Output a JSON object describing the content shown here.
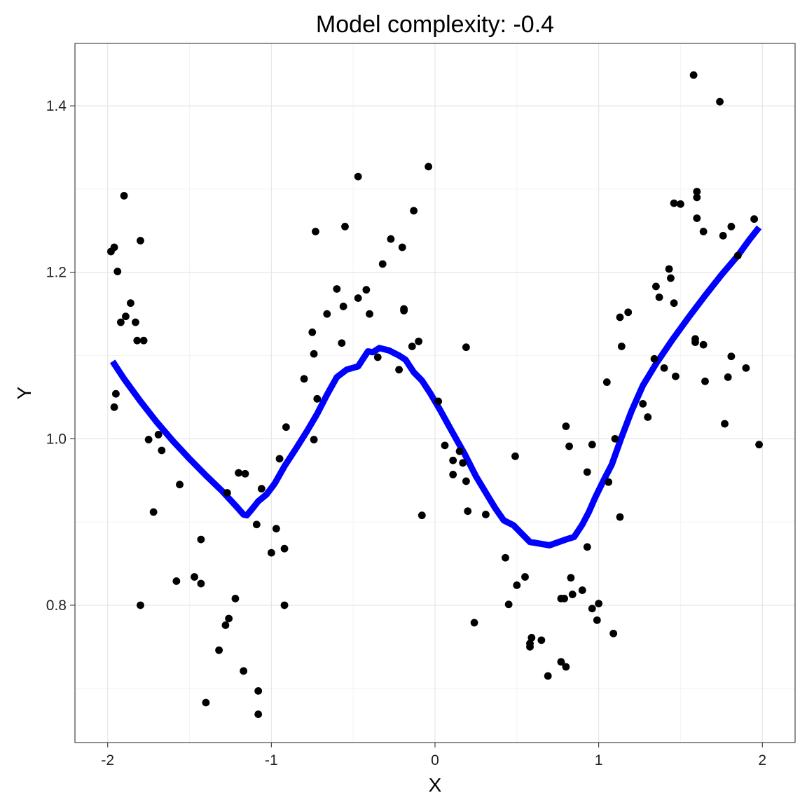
{
  "chart_data": {
    "type": "scatter",
    "title": "Model complexity: -0.4",
    "xlabel": "X",
    "ylabel": "Y",
    "xlim": [
      -2.2,
      2.2
    ],
    "ylim": [
      0.635,
      1.475
    ],
    "x_ticks": [
      -2,
      -1,
      0,
      1,
      2
    ],
    "x_tick_labels": [
      "-2",
      "-1",
      "0",
      "1",
      "2"
    ],
    "y_ticks": [
      0.8,
      1.0,
      1.2,
      1.4
    ],
    "y_tick_labels": [
      "0.8",
      "1.0",
      "1.2",
      "1.4"
    ],
    "grid": true,
    "point_color": "#000000",
    "line_color": "#0000ff",
    "points": [
      [
        -1.98,
        1.225
      ],
      [
        -1.96,
        1.23
      ],
      [
        -1.94,
        1.201
      ],
      [
        -1.95,
        1.054
      ],
      [
        -1.96,
        1.038
      ],
      [
        -1.92,
        1.14
      ],
      [
        -1.89,
        1.147
      ],
      [
        -1.9,
        1.292
      ],
      [
        -1.86,
        1.163
      ],
      [
        -1.83,
        1.14
      ],
      [
        -1.82,
        1.118
      ],
      [
        -1.8,
        1.238
      ],
      [
        -1.78,
        1.118
      ],
      [
        -1.8,
        0.8
      ],
      [
        -1.75,
        0.999
      ],
      [
        -1.72,
        0.912
      ],
      [
        -1.69,
        1.005
      ],
      [
        -1.67,
        0.986
      ],
      [
        -1.56,
        0.945
      ],
      [
        -1.58,
        0.829
      ],
      [
        -1.47,
        0.834
      ],
      [
        -1.43,
        0.879
      ],
      [
        -1.43,
        0.826
      ],
      [
        -1.4,
        0.683
      ],
      [
        -1.32,
        0.746
      ],
      [
        -1.28,
        0.776
      ],
      [
        -1.26,
        0.784
      ],
      [
        -1.27,
        0.935
      ],
      [
        -1.22,
        0.808
      ],
      [
        -1.2,
        0.959
      ],
      [
        -1.16,
        0.958
      ],
      [
        -1.17,
        0.721
      ],
      [
        -1.09,
        0.897
      ],
      [
        -1.08,
        0.697
      ],
      [
        -1.08,
        0.669
      ],
      [
        -1.06,
        0.94
      ],
      [
        -1.0,
        0.863
      ],
      [
        -0.97,
        0.892
      ],
      [
        -0.95,
        0.976
      ],
      [
        -0.92,
        0.868
      ],
      [
        -0.92,
        0.8
      ],
      [
        -0.91,
        1.014
      ],
      [
        -0.8,
        1.072
      ],
      [
        -0.75,
        1.128
      ],
      [
        -0.74,
        1.102
      ],
      [
        -0.74,
        0.999
      ],
      [
        -0.73,
        1.249
      ],
      [
        -0.72,
        1.048
      ],
      [
        -0.66,
        1.15
      ],
      [
        -0.6,
        1.18
      ],
      [
        -0.57,
        1.115
      ],
      [
        -0.56,
        1.159
      ],
      [
        -0.55,
        1.255
      ],
      [
        -0.47,
        1.169
      ],
      [
        -0.47,
        1.315
      ],
      [
        -0.42,
        1.179
      ],
      [
        -0.4,
        1.15
      ],
      [
        -0.35,
        1.098
      ],
      [
        -0.32,
        1.21
      ],
      [
        -0.27,
        1.24
      ],
      [
        -0.22,
        1.083
      ],
      [
        -0.2,
        1.23
      ],
      [
        -0.19,
        1.156
      ],
      [
        -0.19,
        1.154
      ],
      [
        -0.14,
        1.111
      ],
      [
        -0.13,
        1.274
      ],
      [
        -0.1,
        1.117
      ],
      [
        -0.08,
        0.908
      ],
      [
        -0.04,
        1.327
      ],
      [
        0.02,
        1.045
      ],
      [
        0.06,
        0.992
      ],
      [
        0.11,
        0.974
      ],
      [
        0.11,
        0.957
      ],
      [
        0.15,
        0.985
      ],
      [
        0.17,
        0.971
      ],
      [
        0.19,
        0.949
      ],
      [
        0.19,
        1.11
      ],
      [
        0.2,
        0.913
      ],
      [
        0.24,
        0.779
      ],
      [
        0.31,
        0.909
      ],
      [
        0.43,
        0.857
      ],
      [
        0.45,
        0.801
      ],
      [
        0.49,
        0.979
      ],
      [
        0.5,
        0.824
      ],
      [
        0.55,
        0.834
      ],
      [
        0.58,
        0.75
      ],
      [
        0.58,
        0.754
      ],
      [
        0.59,
        0.761
      ],
      [
        0.65,
        0.758
      ],
      [
        0.69,
        0.715
      ],
      [
        0.77,
        0.732
      ],
      [
        0.77,
        0.808
      ],
      [
        0.79,
        0.808
      ],
      [
        0.8,
        0.726
      ],
      [
        0.8,
        1.015
      ],
      [
        0.82,
        0.991
      ],
      [
        0.83,
        0.833
      ],
      [
        0.84,
        0.813
      ],
      [
        0.9,
        0.818
      ],
      [
        0.93,
        0.87
      ],
      [
        0.93,
        0.96
      ],
      [
        0.96,
        0.993
      ],
      [
        0.96,
        0.796
      ],
      [
        0.99,
        0.782
      ],
      [
        1.0,
        0.802
      ],
      [
        1.05,
        1.068
      ],
      [
        1.06,
        0.948
      ],
      [
        1.09,
        0.766
      ],
      [
        1.1,
        1.0
      ],
      [
        1.13,
        0.906
      ],
      [
        1.13,
        1.146
      ],
      [
        1.14,
        1.111
      ],
      [
        1.18,
        1.152
      ],
      [
        1.27,
        1.042
      ],
      [
        1.3,
        1.026
      ],
      [
        1.34,
        1.096
      ],
      [
        1.35,
        1.183
      ],
      [
        1.37,
        1.17
      ],
      [
        1.4,
        1.085
      ],
      [
        1.43,
        1.204
      ],
      [
        1.44,
        1.193
      ],
      [
        1.46,
        1.283
      ],
      [
        1.46,
        1.163
      ],
      [
        1.47,
        1.075
      ],
      [
        1.5,
        1.282
      ],
      [
        1.58,
        1.437
      ],
      [
        1.59,
        1.12
      ],
      [
        1.59,
        1.116
      ],
      [
        1.6,
        1.29
      ],
      [
        1.6,
        1.297
      ],
      [
        1.6,
        1.265
      ],
      [
        1.64,
        1.113
      ],
      [
        1.64,
        1.249
      ],
      [
        1.65,
        1.069
      ],
      [
        1.74,
        1.405
      ],
      [
        1.76,
        1.244
      ],
      [
        1.77,
        1.018
      ],
      [
        1.79,
        1.074
      ],
      [
        1.81,
        1.255
      ],
      [
        1.81,
        1.099
      ],
      [
        1.85,
        1.22
      ],
      [
        1.9,
        1.085
      ],
      [
        1.95,
        1.264
      ],
      [
        1.98,
        0.993
      ]
    ],
    "fitted_line": [
      [
        -1.97,
        1.093
      ],
      [
        -1.9,
        1.072
      ],
      [
        -1.8,
        1.045
      ],
      [
        -1.7,
        1.02
      ],
      [
        -1.6,
        0.997
      ],
      [
        -1.5,
        0.976
      ],
      [
        -1.4,
        0.956
      ],
      [
        -1.3,
        0.937
      ],
      [
        -1.22,
        0.92
      ],
      [
        -1.17,
        0.909
      ],
      [
        -1.15,
        0.908
      ],
      [
        -1.12,
        0.915
      ],
      [
        -1.08,
        0.925
      ],
      [
        -1.03,
        0.933
      ],
      [
        -0.98,
        0.946
      ],
      [
        -0.92,
        0.967
      ],
      [
        -0.85,
        0.988
      ],
      [
        -0.78,
        1.01
      ],
      [
        -0.72,
        1.03
      ],
      [
        -0.66,
        1.053
      ],
      [
        -0.6,
        1.074
      ],
      [
        -0.54,
        1.083
      ],
      [
        -0.47,
        1.087
      ],
      [
        -0.41,
        1.105
      ],
      [
        -0.38,
        1.104
      ],
      [
        -0.34,
        1.109
      ],
      [
        -0.28,
        1.106
      ],
      [
        -0.22,
        1.1
      ],
      [
        -0.18,
        1.095
      ],
      [
        -0.13,
        1.08
      ],
      [
        -0.08,
        1.07
      ],
      [
        -0.03,
        1.055
      ],
      [
        0.03,
        1.035
      ],
      [
        0.1,
        1.01
      ],
      [
        0.18,
        0.982
      ],
      [
        0.25,
        0.955
      ],
      [
        0.32,
        0.932
      ],
      [
        0.37,
        0.916
      ],
      [
        0.42,
        0.902
      ],
      [
        0.48,
        0.896
      ],
      [
        0.53,
        0.886
      ],
      [
        0.58,
        0.876
      ],
      [
        0.7,
        0.872
      ],
      [
        0.8,
        0.879
      ],
      [
        0.85,
        0.882
      ],
      [
        0.9,
        0.897
      ],
      [
        0.94,
        0.912
      ],
      [
        0.98,
        0.93
      ],
      [
        1.03,
        0.95
      ],
      [
        1.08,
        0.969
      ],
      [
        1.14,
        1.002
      ],
      [
        1.2,
        1.033
      ],
      [
        1.27,
        1.064
      ],
      [
        1.35,
        1.09
      ],
      [
        1.45,
        1.119
      ],
      [
        1.55,
        1.146
      ],
      [
        1.65,
        1.172
      ],
      [
        1.75,
        1.197
      ],
      [
        1.85,
        1.22
      ],
      [
        1.92,
        1.239
      ],
      [
        1.98,
        1.254
      ]
    ]
  }
}
